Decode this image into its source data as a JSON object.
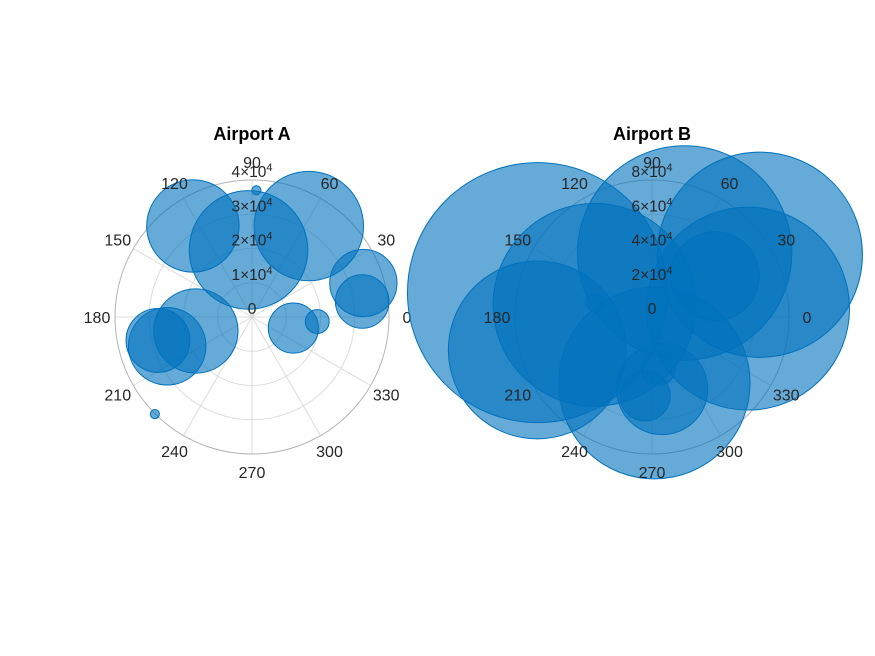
{
  "chart_data": [
    {
      "type": "polar-bubble",
      "title": "Airport A",
      "theta_ticks": [
        "0",
        "30",
        "60",
        "90",
        "120",
        "150",
        "180",
        "210",
        "240",
        "270",
        "300",
        "330"
      ],
      "r_ticks": [
        {
          "value": 0,
          "label": "0"
        },
        {
          "value": 10000,
          "mant": "1",
          "exp": "4"
        },
        {
          "value": 20000,
          "mant": "2",
          "exp": "4"
        },
        {
          "value": 30000,
          "mant": "3",
          "exp": "4"
        },
        {
          "value": 40000,
          "mant": "4",
          "exp": "4"
        }
      ],
      "rlim": [
        0,
        40000
      ],
      "series": [
        {
          "points": [
            {
              "theta": 123,
              "r": 31700,
              "size": 8100
            },
            {
              "theta": 93,
              "r": 19600,
              "size": 10400
            },
            {
              "theta": 58,
              "r": 31300,
              "size": 9600
            },
            {
              "theta": 88,
              "r": 37000,
              "size": 800
            },
            {
              "theta": 17,
              "r": 34000,
              "size": 5900
            },
            {
              "theta": 8,
              "r": 32500,
              "size": 4700
            },
            {
              "theta": 345,
              "r": 12500,
              "size": 4400
            },
            {
              "theta": 356,
              "r": 19100,
              "size": 2100
            },
            {
              "theta": 194,
              "r": 28300,
              "size": 5600
            },
            {
              "theta": 199,
              "r": 26200,
              "size": 6800
            },
            {
              "theta": 194,
              "r": 16900,
              "size": 7400
            },
            {
              "theta": 225,
              "r": 40100,
              "size": 800
            }
          ]
        }
      ],
      "color": "#0072bd"
    },
    {
      "type": "polar-bubble",
      "title": "Airport B",
      "theta_ticks": [
        "0",
        "30",
        "60",
        "90",
        "120",
        "150",
        "180",
        "210",
        "240",
        "270",
        "300",
        "330"
      ],
      "r_ticks": [
        {
          "value": 0,
          "label": "0"
        },
        {
          "value": 20000,
          "mant": "2",
          "exp": "4"
        },
        {
          "value": 40000,
          "mant": "4",
          "exp": "4"
        },
        {
          "value": 60000,
          "mant": "6",
          "exp": "4"
        },
        {
          "value": 80000,
          "mant": "8",
          "exp": "4"
        }
      ],
      "rlim": [
        0,
        80000
      ],
      "series": [
        {
          "points": [
            {
              "theta": 168,
              "r": 68400,
              "size": 22800
            },
            {
              "theta": 196,
              "r": 69700,
              "size": 15600
            },
            {
              "theta": 168,
              "r": 34300,
              "size": 17800
            },
            {
              "theta": 166,
              "r": 34000,
              "size": 1600
            },
            {
              "theta": 63,
              "r": 42000,
              "size": 18800
            },
            {
              "theta": 33,
              "r": 43800,
              "size": 7800
            },
            {
              "theta": 30,
              "r": 72700,
              "size": 18000
            },
            {
              "theta": 5,
              "r": 56300,
              "size": 17800
            },
            {
              "theta": 272,
              "r": 38600,
              "size": 16800
            },
            {
              "theta": 278,
              "r": 42500,
              "size": 8000
            },
            {
              "theta": 265,
              "r": 46200,
              "size": 4400
            },
            {
              "theta": 277,
              "r": 30200,
              "size": 3000
            }
          ]
        }
      ],
      "color": "#0072bd"
    }
  ]
}
